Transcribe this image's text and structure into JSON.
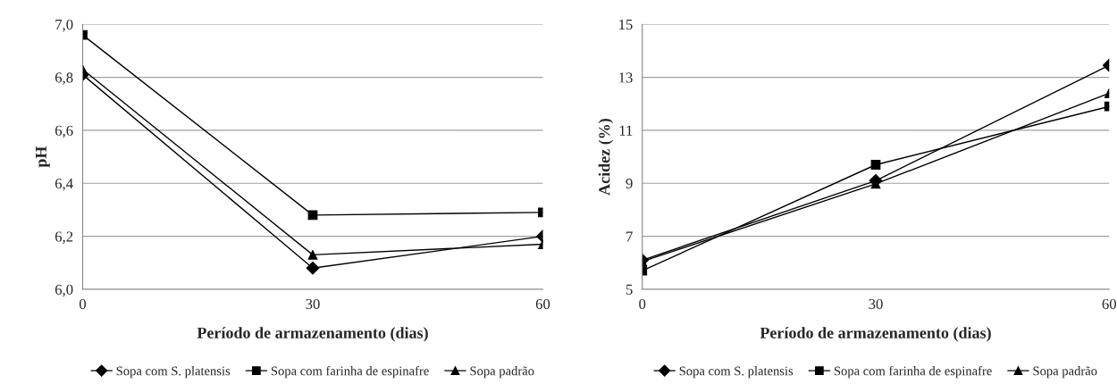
{
  "chart_data": [
    {
      "type": "line",
      "xlabel": "Período de armazenamento (dias)",
      "ylabel": "pH",
      "x": [
        0,
        30,
        60
      ],
      "xlim": [
        0,
        60
      ],
      "xticks": [
        0,
        30,
        60
      ],
      "ylim": [
        6.0,
        7.0
      ],
      "yticks": [
        {
          "value": 6.0,
          "label": "6,0"
        },
        {
          "value": 6.2,
          "label": "6,2"
        },
        {
          "value": 6.4,
          "label": "6,4"
        },
        {
          "value": 6.6,
          "label": "6,6"
        },
        {
          "value": 6.8,
          "label": "6,8"
        },
        {
          "value": 7.0,
          "label": "7,0"
        }
      ],
      "grid": "y",
      "legend": "bottom",
      "series": [
        {
          "name": "Sopa com S. platensis",
          "color": "#000000",
          "marker": "diamond",
          "values": [
            6.81,
            6.08,
            6.2
          ]
        },
        {
          "name": "Sopa com farinha de espinafre",
          "color": "#000000",
          "marker": "square",
          "values": [
            6.96,
            6.28,
            6.29
          ]
        },
        {
          "name": "Sopa padrão",
          "color": "#000000",
          "marker": "triangle",
          "values": [
            6.83,
            6.13,
            6.17
          ]
        }
      ]
    },
    {
      "type": "line",
      "xlabel": "Período de armazenamento (dias)",
      "ylabel": "Acidez (%)",
      "x": [
        0,
        30,
        60
      ],
      "xlim": [
        0,
        60
      ],
      "xticks": [
        0,
        30,
        60
      ],
      "ylim": [
        5,
        15
      ],
      "yticks": [
        5,
        7,
        9,
        11,
        13,
        15
      ],
      "grid": "y",
      "legend": "bottom",
      "series": [
        {
          "name": "Sopa com S. platensis",
          "color": "#000000",
          "marker": "diamond",
          "values": [
            6.1,
            9.1,
            13.45
          ]
        },
        {
          "name": "Sopa com farinha de espinafre",
          "color": "#000000",
          "marker": "square",
          "values": [
            5.7,
            9.7,
            11.9
          ]
        },
        {
          "name": "Sopa padrão",
          "color": "#000000",
          "marker": "triangle",
          "values": [
            6.05,
            8.98,
            12.4
          ]
        }
      ]
    }
  ]
}
